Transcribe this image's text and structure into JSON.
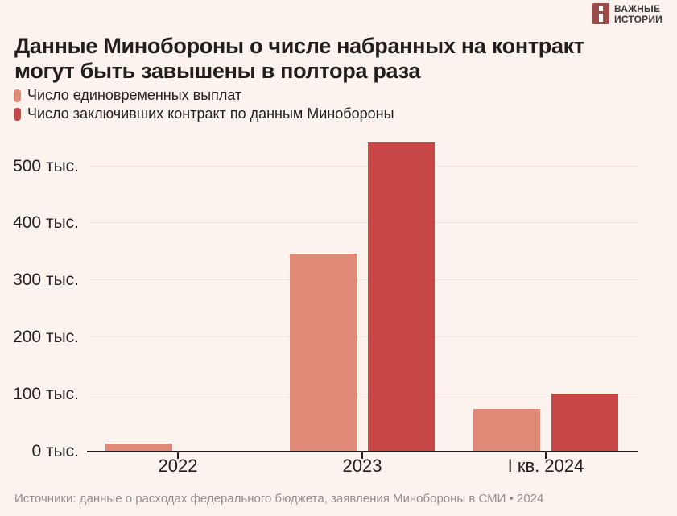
{
  "logo": {
    "brand_line1": "ВАЖНЫЕ",
    "brand_line2": "ИСТОРИИ",
    "icon_color": "#9c4a4a"
  },
  "title": {
    "line1": "Данные Минобороны о числе набранных на контракт",
    "line2": "могут быть завышены в полтора раза"
  },
  "legend": [
    {
      "label": "Число единовременных выплат",
      "color": "#e08977"
    },
    {
      "label": "Число заключивших контракт по данным Минобороны",
      "color": "#c74646"
    }
  ],
  "source": "Источники: данные о расходах федерального бюджета, заявления Минобороны в СМИ • 2024",
  "colors": {
    "background": "#fcf2ee",
    "text": "#211f1e",
    "gridline": "#f2e1dd",
    "source_text": "#948f8d",
    "series_payments": "#e08977",
    "series_mod": "#c74646",
    "logo_square": "#9c4a4a"
  },
  "chart_data": {
    "type": "bar",
    "categories": [
      "2022",
      "2023",
      "I кв. 2024"
    ],
    "series": [
      {
        "name": "Число единовременных выплат",
        "color": "#e08977",
        "values": [
          13,
          345,
          73
        ]
      },
      {
        "name": "Число заключивших контракт по данным Минобороны",
        "color": "#c74646",
        "values": [
          null,
          540,
          100
        ]
      }
    ],
    "unit": "тыс.",
    "y_ticks": [
      0,
      100,
      200,
      300,
      400,
      500
    ],
    "y_tick_labels": [
      "0 тыс.",
      "100 тыс.",
      "200 тыс.",
      "300 тыс.",
      "400 тыс.",
      "500 тыс."
    ],
    "ylim": [
      0,
      560
    ],
    "grid": "horizontal",
    "legend_position": "top-left"
  }
}
